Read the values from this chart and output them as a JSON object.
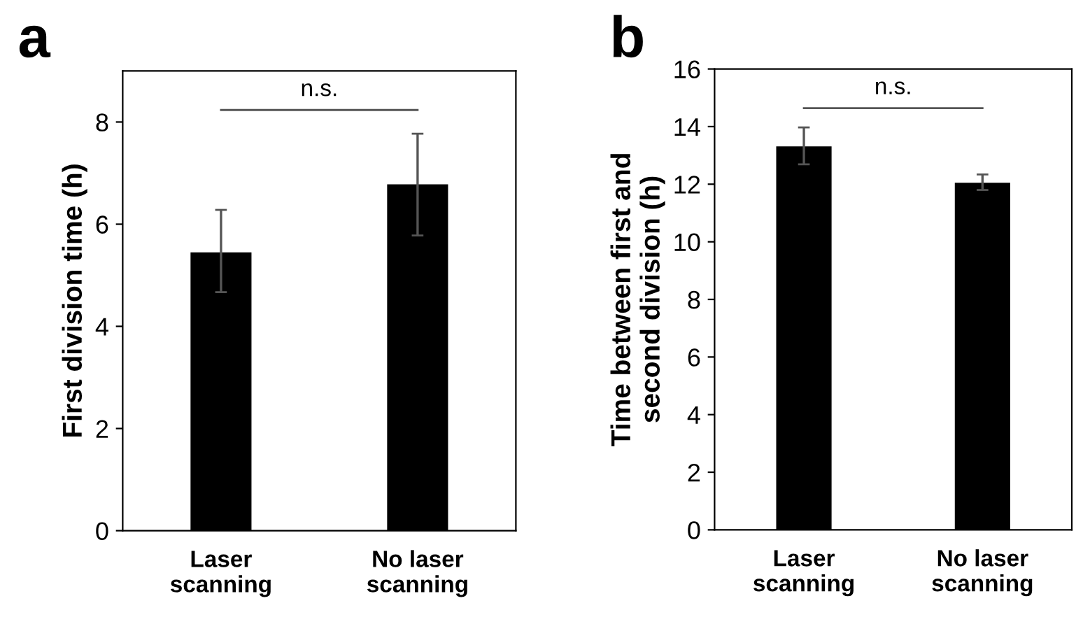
{
  "chart_data": [
    {
      "type": "bar",
      "title": "a",
      "ylabel": "First division time (h)",
      "categories": [
        "Laser\nscanning",
        "No laser\nscanning"
      ],
      "series": [
        {
          "color": "#000000",
          "values": [
            5.45,
            6.78
          ],
          "errors": [
            [
              4.67,
              6.28
            ],
            [
              5.78,
              7.77
            ]
          ]
        }
      ],
      "ylim": [
        0,
        9
      ],
      "yticks": [
        0,
        2,
        4,
        6,
        8
      ],
      "grid": false,
      "legend": false,
      "annotations": [
        "n.s."
      ]
    },
    {
      "type": "bar",
      "title": "b",
      "ylabel": "Time between first and\nsecond division (h)",
      "categories": [
        "Laser\nscanning",
        "No laser\nscanning"
      ],
      "series": [
        {
          "color": "#000000",
          "values": [
            13.31,
            12.05
          ],
          "errors": [
            [
              12.69,
              13.97
            ],
            [
              11.8,
              12.34
            ]
          ]
        }
      ],
      "ylim": [
        0,
        16
      ],
      "yticks": [
        0,
        2,
        4,
        6,
        8,
        10,
        12,
        14,
        16
      ],
      "grid": false,
      "legend": false,
      "annotations": [
        "n.s."
      ]
    }
  ]
}
